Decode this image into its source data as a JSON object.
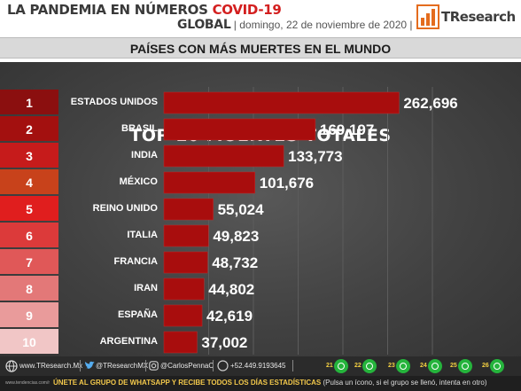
{
  "header": {
    "title_part1": "LA PANDEMIA EN NÚMEROS",
    "title_part2": "COVID-19",
    "scope": "GLOBAL",
    "date": "domingo, 22 de noviembre de 2020",
    "logo": "TResearch"
  },
  "subtitle": "PAÍSES CON MÁS MUERTES EN EL MUNDO",
  "chart_data": {
    "type": "bar",
    "orientation": "horizontal",
    "title": "TOP 10 MUERTES TOTALES",
    "ranks": [
      "1",
      "2",
      "3",
      "4",
      "5",
      "6",
      "7",
      "8",
      "9",
      "10"
    ],
    "categories": [
      "ESTADOS UNIDOS",
      "BRASIL",
      "INDIA",
      "MÉXICO",
      "REINO UNIDO",
      "ITALIA",
      "FRANCIA",
      "IRAN",
      "ESPAÑA",
      "ARGENTINA"
    ],
    "values": [
      262696,
      169197,
      133773,
      101676,
      55024,
      49823,
      48732,
      44802,
      42619,
      37002
    ],
    "value_labels": [
      "262,696",
      "169,197",
      "133,773",
      "101,676",
      "55,024",
      "49,823",
      "48,732",
      "44,802",
      "42,619",
      "37,002"
    ],
    "xlim": [
      0,
      300000
    ],
    "grid": true,
    "rank_colors": [
      "#8b0f0f",
      "#a3100f",
      "#c61b1b",
      "#c8421b",
      "#e01e1e",
      "#dc3a3a",
      "#e05858",
      "#e37878",
      "#e99b9b",
      "#f1c6c6"
    ],
    "bar_color": "#a80d0d"
  },
  "footer": {
    "website": "www.TResearch.Mx",
    "twitter": "@TResearchMX",
    "instagram": "@CarlosPennaC",
    "phone": "+52.449.9193645",
    "groups": [
      "21",
      "22",
      "23",
      "24",
      "25",
      "26"
    ],
    "join_text": "ÚNETE AL GRUPO DE WHATSAPP Y RECIBE TODOS LOS DÍAS ESTADÍSTICAS",
    "join_note": "(Pulsa un ícono, si el grupo se llenó, intenta en otro)",
    "tiny_url": "www.tendencias.com/r"
  }
}
